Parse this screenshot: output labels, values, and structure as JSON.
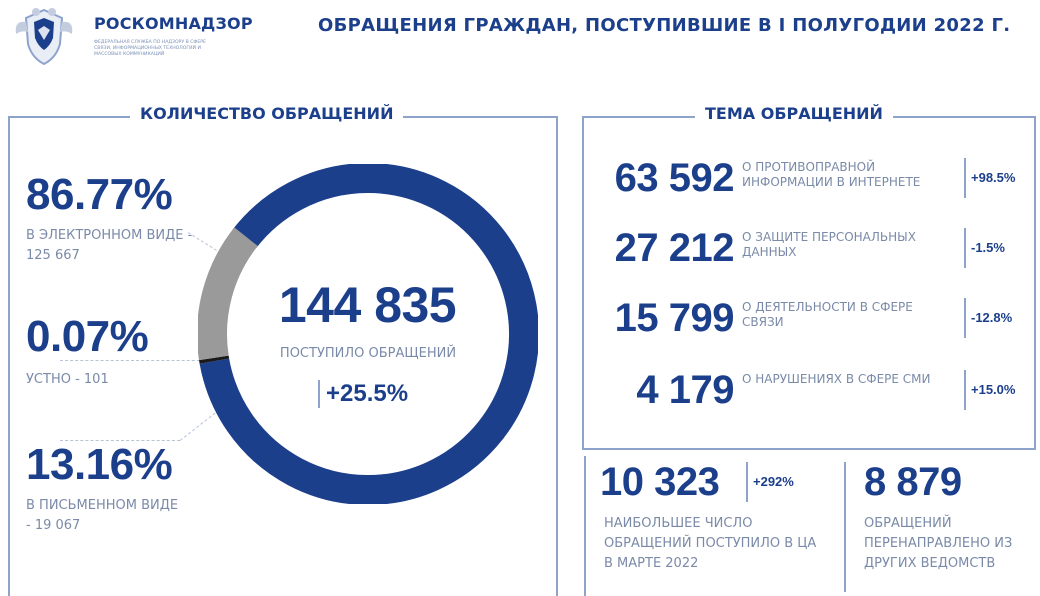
{
  "header": {
    "org_name": "РОСКОМНАДЗОР",
    "org_sub": "ФЕДЕРАЛЬНАЯ СЛУЖБА ПО НАДЗОРУ В СФЕРЕ СВЯЗИ, ИНФОРМАЦИОННЫХ ТЕХНОЛОГИЙ И МАССОВЫХ КОММУНИКАЦИЙ",
    "title": "ОБРАЩЕНИЯ ГРАЖДАН, ПОСТУПИВШИЕ В I ПОЛУГОДИИ 2022 Г."
  },
  "left": {
    "label": "КОЛИЧЕСТВО ОБРАЩЕНИЙ",
    "stats": [
      {
        "pct": "86.77%",
        "desc": "В ЭЛЕКТРОННОМ ВИДЕ - 125 667"
      },
      {
        "pct": "0.07%",
        "desc": "УСТНО - 101"
      },
      {
        "pct": "13.16%",
        "desc": "В ПИСЬМЕННОМ ВИДЕ - 19 067"
      }
    ],
    "total": "144 835",
    "total_label": "ПОСТУПИЛО ОБРАЩЕНИЙ",
    "growth": "+25.5%"
  },
  "right": {
    "label": "ТЕМА ОБРАЩЕНИЙ",
    "topics": [
      {
        "value": "63 592",
        "desc": "О ПРОТИВОПРАВНОЙ ИНФОРМАЦИИ В ИНТЕРНЕТЕ",
        "change": "+98.5%"
      },
      {
        "value": "27 212",
        "desc": "О ЗАЩИТЕ ПЕРСОНАЛЬНЫХ ДАННЫХ",
        "change": "-1.5%"
      },
      {
        "value": "15 799",
        "desc": "О ДЕЯТЕЛЬНОСТИ В СФЕРЕ СВЯЗИ",
        "change": "-12.8%"
      },
      {
        "value": "4 179",
        "desc": "О НАРУШЕНИЯХ В СФЕРЕ СМИ",
        "change": "+15.0%"
      }
    ]
  },
  "bottom": {
    "march_value": "10 323",
    "march_change": "+292%",
    "march_desc": "НАИБОЛЬШЕЕ ЧИСЛО ОБРАЩЕНИЙ ПОСТУПИЛО В ЦА В МАРТЕ 2022",
    "redirected_value": "8 879",
    "redirected_desc": "ОБРАЩЕНИЙ ПЕРЕНАПРАВЛЕНО ИЗ ДРУГИХ ВЕДОМСТВ"
  },
  "colors": {
    "primary": "#1c3f8c",
    "secondary": "#9a9a9a",
    "oral": "#1a1a1a",
    "muted_text": "#7a8aa8",
    "border": "#8ea3cc"
  },
  "chart_data": {
    "type": "pie",
    "categories": [
      "В ЭЛЕКТРОННОМ ВИДЕ",
      "УСТНО",
      "В ПИСЬМЕННОМ ВИДЕ"
    ],
    "values": [
      125667,
      101,
      19067
    ],
    "percent_labels": [
      "86.77%",
      "0.07%",
      "13.16%"
    ],
    "total": 144835,
    "colors": [
      "#1c3f8c",
      "#1a1a1a",
      "#9a9a9a"
    ]
  }
}
